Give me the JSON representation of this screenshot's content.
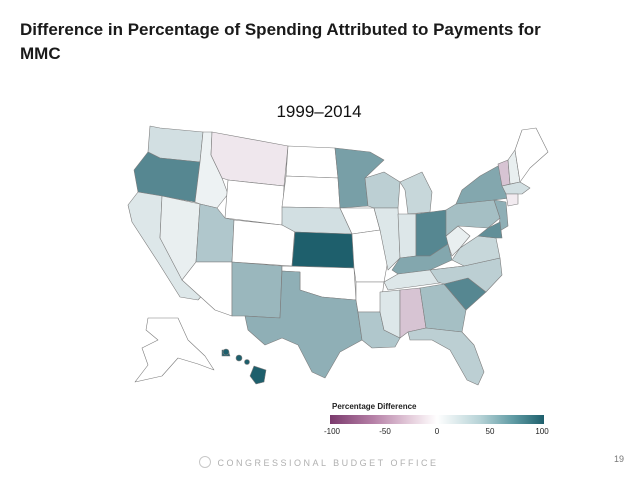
{
  "title": "Difference in Percentage of Spending Attributed to Payments for MMC",
  "subtitle": "1999–2014",
  "legend": {
    "title": "Percentage Difference",
    "ticks": [
      "-100",
      "-50",
      "0",
      "50",
      "100"
    ],
    "range": [
      -100,
      100
    ],
    "colors": {
      "low": "#7b3a6d",
      "mid": "#ffffff",
      "high": "#1e5f6c"
    }
  },
  "map_data": {
    "type": "choropleth",
    "region": "United States",
    "value_scale": "percentage difference",
    "states": [
      {
        "id": "WA",
        "value": 20
      },
      {
        "id": "OR",
        "value": 75
      },
      {
        "id": "CA",
        "value": 15
      },
      {
        "id": "NV",
        "value": 10
      },
      {
        "id": "ID",
        "value": 8
      },
      {
        "id": "MT",
        "value": -12
      },
      {
        "id": "WY",
        "value": 0
      },
      {
        "id": "UT",
        "value": 35
      },
      {
        "id": "CO",
        "value": 0
      },
      {
        "id": "AZ",
        "value": 0
      },
      {
        "id": "NM",
        "value": 45
      },
      {
        "id": "ND",
        "value": 0
      },
      {
        "id": "SD",
        "value": 0
      },
      {
        "id": "NE",
        "value": 20
      },
      {
        "id": "KS",
        "value": 100
      },
      {
        "id": "OK",
        "value": 0
      },
      {
        "id": "TX",
        "value": 50
      },
      {
        "id": "MN",
        "value": 60
      },
      {
        "id": "IA",
        "value": 0
      },
      {
        "id": "MO",
        "value": 0
      },
      {
        "id": "AR",
        "value": 0
      },
      {
        "id": "LA",
        "value": 35
      },
      {
        "id": "WI",
        "value": 30
      },
      {
        "id": "IL",
        "value": 15
      },
      {
        "id": "MI",
        "value": 25
      },
      {
        "id": "IN",
        "value": 15
      },
      {
        "id": "OH",
        "value": 75
      },
      {
        "id": "KY",
        "value": 55
      },
      {
        "id": "TN",
        "value": 15
      },
      {
        "id": "MS",
        "value": 15
      },
      {
        "id": "AL",
        "value": -30
      },
      {
        "id": "GA",
        "value": 40
      },
      {
        "id": "FL",
        "value": 30
      },
      {
        "id": "SC",
        "value": 75
      },
      {
        "id": "NC",
        "value": 30
      },
      {
        "id": "VA",
        "value": 25
      },
      {
        "id": "WV",
        "value": 10
      },
      {
        "id": "PA",
        "value": 40
      },
      {
        "id": "NY",
        "value": 55
      },
      {
        "id": "VT",
        "value": -30
      },
      {
        "id": "NH",
        "value": 10
      },
      {
        "id": "ME",
        "value": 0
      },
      {
        "id": "MA",
        "value": 20
      },
      {
        "id": "CT",
        "value": -10
      },
      {
        "id": "NJ",
        "value": 50
      },
      {
        "id": "MD",
        "value": 70
      },
      {
        "id": "AK",
        "value": 0
      },
      {
        "id": "HI",
        "value": 100
      }
    ]
  },
  "footer": {
    "org": "CONGRESSIONAL BUDGET OFFICE",
    "page": "19"
  }
}
